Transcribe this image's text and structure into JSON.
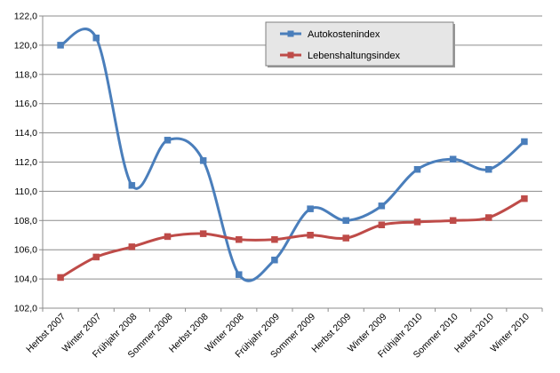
{
  "chart_data": {
    "type": "line",
    "title": "",
    "xlabel": "",
    "ylabel": "",
    "categories": [
      "Herbst 2007",
      "Winter 2007",
      "Frühjahr 2008",
      "Sommer 2008",
      "Herbst 2008",
      "Winter 2008",
      "Frühjahr 2009",
      "Sommer 2009",
      "Herbst 2009",
      "Winter 2009",
      "Frühjahr 2010",
      "Sommer 2010",
      "Herbst 2010",
      "Winter 2010"
    ],
    "y_ticks": [
      "102,0",
      "104,0",
      "106,0",
      "108,0",
      "110,0",
      "112,0",
      "114,0",
      "116,0",
      "118,0",
      "120,0",
      "122,0"
    ],
    "ylim": [
      102,
      122
    ],
    "y_step": 2,
    "grid": true,
    "smooth": true,
    "legend_position": "top-right",
    "series": [
      {
        "name": "Autokostenindex",
        "color": "#4a7ebb",
        "marker": "square",
        "values": [
          120.0,
          120.5,
          110.4,
          113.5,
          112.1,
          104.3,
          105.3,
          108.8,
          108.0,
          109.0,
          111.5,
          112.2,
          111.5,
          113.4
        ]
      },
      {
        "name": "Lebenshaltungsindex",
        "color": "#be4b48",
        "marker": "square",
        "values": [
          104.1,
          105.5,
          106.2,
          106.9,
          107.1,
          106.7,
          106.7,
          107.0,
          106.8,
          107.7,
          107.9,
          108.0,
          108.2,
          109.5
        ]
      }
    ]
  }
}
